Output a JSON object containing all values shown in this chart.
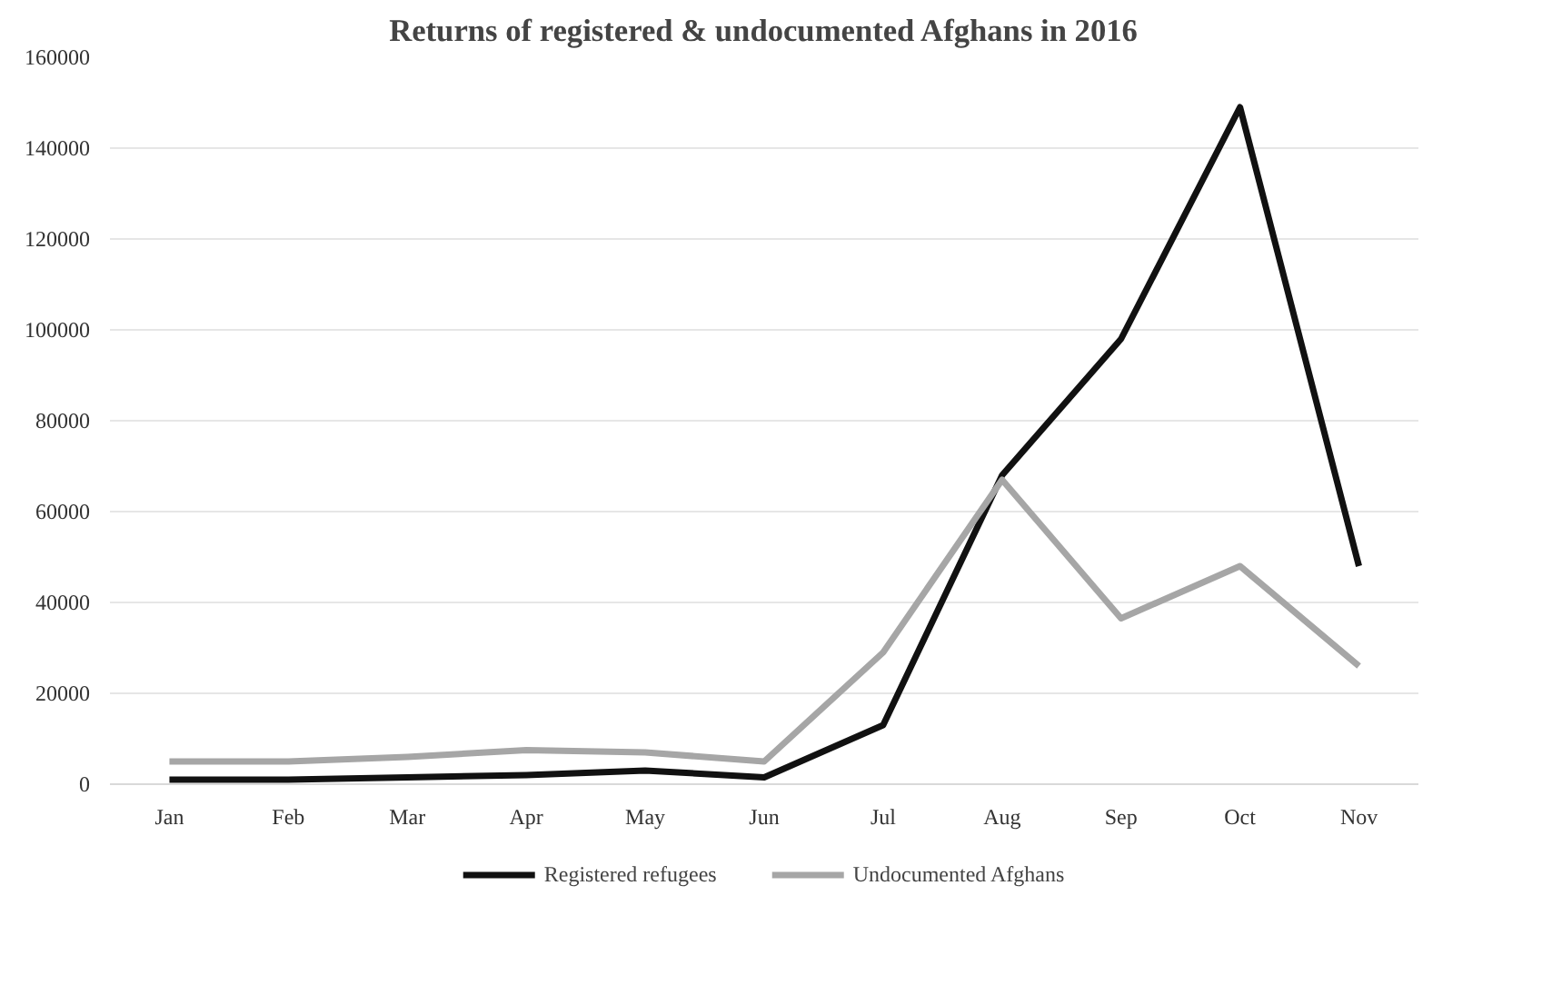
{
  "chart_data": {
    "type": "line",
    "title": "Returns of registered & undocumented Afghans in 2016",
    "categories": [
      "Jan",
      "Feb",
      "Mar",
      "Apr",
      "May",
      "Jun",
      "Jul",
      "Aug",
      "Sep",
      "Oct",
      "Nov"
    ],
    "series": [
      {
        "name": "Registered refugees",
        "color": "#111111",
        "values": [
          1000,
          1000,
          1500,
          2000,
          3000,
          1500,
          13000,
          68000,
          98000,
          149000,
          48000
        ]
      },
      {
        "name": "Undocumented Afghans",
        "color": "#a6a6a6",
        "values": [
          5000,
          5000,
          6000,
          7500,
          7000,
          5000,
          29000,
          67000,
          36500,
          48000,
          26000
        ]
      }
    ],
    "ylim": [
      0,
      160000
    ],
    "yticks": [
      0,
      20000,
      40000,
      60000,
      80000,
      100000,
      120000,
      140000,
      160000
    ],
    "grid": "y",
    "legend": "bottom",
    "marker": "none",
    "line_style": "solid"
  }
}
